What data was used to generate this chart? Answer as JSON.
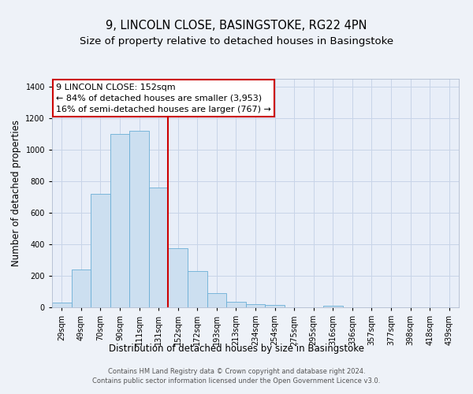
{
  "title": "9, LINCOLN CLOSE, BASINGSTOKE, RG22 4PN",
  "subtitle": "Size of property relative to detached houses in Basingstoke",
  "xlabel": "Distribution of detached houses by size in Basingstoke",
  "ylabel": "Number of detached properties",
  "bar_labels": [
    "29sqm",
    "49sqm",
    "70sqm",
    "90sqm",
    "111sqm",
    "131sqm",
    "152sqm",
    "172sqm",
    "193sqm",
    "213sqm",
    "234sqm",
    "254sqm",
    "275sqm",
    "295sqm",
    "316sqm",
    "336sqm",
    "357sqm",
    "377sqm",
    "398sqm",
    "418sqm",
    "439sqm"
  ],
  "bar_heights": [
    30,
    240,
    720,
    1100,
    1120,
    760,
    375,
    230,
    90,
    35,
    20,
    15,
    0,
    0,
    10,
    0,
    0,
    0,
    0,
    0,
    0
  ],
  "highlight_index": 6,
  "bar_color": "#ccdff0",
  "bar_edge_color": "#6aaed6",
  "highlight_line_color": "#cc0000",
  "ylim": [
    0,
    1450
  ],
  "yticks": [
    0,
    200,
    400,
    600,
    800,
    1000,
    1200,
    1400
  ],
  "annotation_title": "9 LINCOLN CLOSE: 152sqm",
  "annotation_line1": "← 84% of detached houses are smaller (3,953)",
  "annotation_line2": "16% of semi-detached houses are larger (767) →",
  "footer1": "Contains HM Land Registry data © Crown copyright and database right 2024.",
  "footer2": "Contains public sector information licensed under the Open Government Licence v3.0.",
  "bg_color": "#eef2f8",
  "plot_bg_color": "#e8eef8",
  "grid_color": "#c8d4e8",
  "title_fontsize": 10.5,
  "subtitle_fontsize": 9.5,
  "axis_label_fontsize": 8.5,
  "tick_fontsize": 7,
  "annotation_fontsize": 8,
  "footer_fontsize": 6
}
